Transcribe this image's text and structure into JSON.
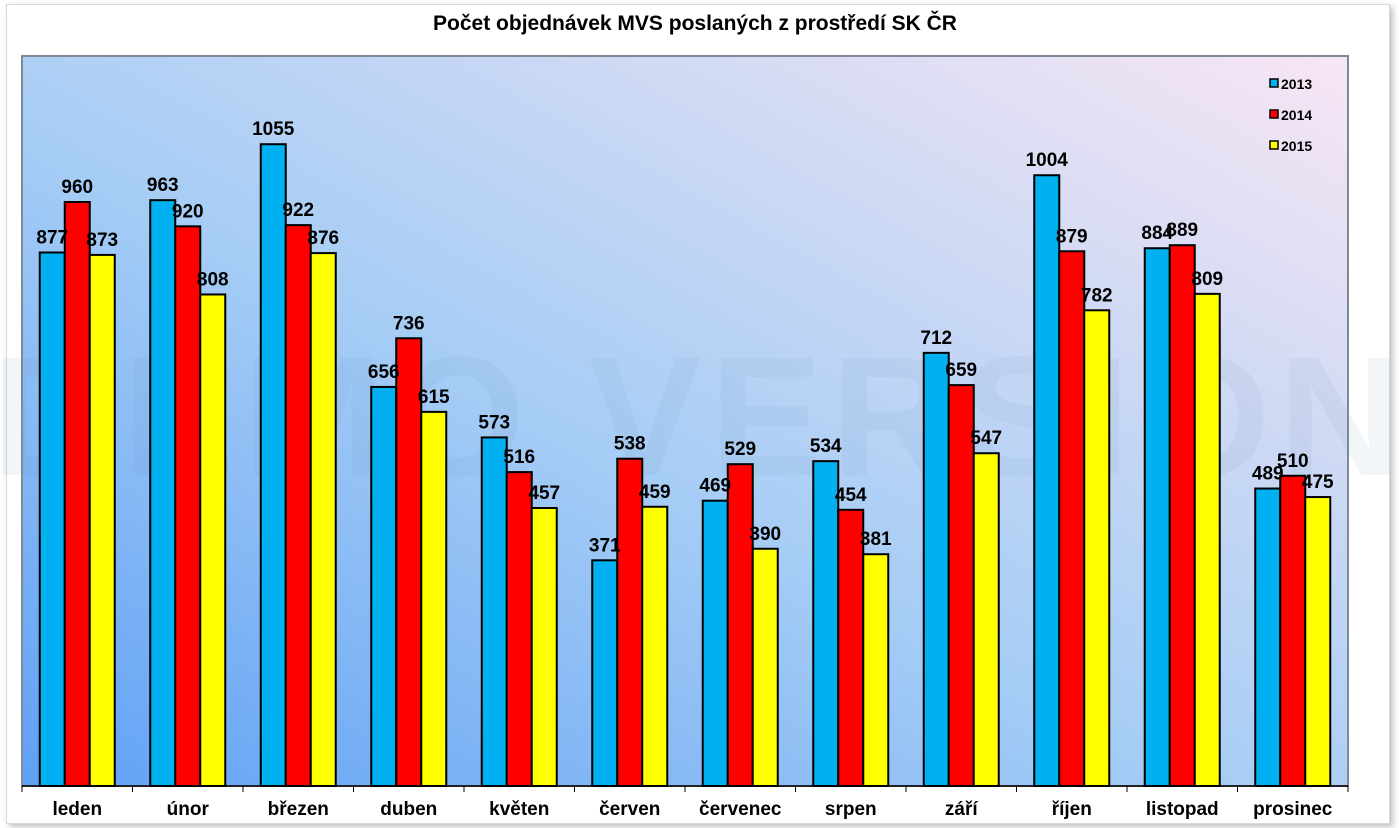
{
  "chart_data": {
    "type": "bar",
    "title": "Počet objednávek MVS poslaných z prostředí SK ČR",
    "xlabel": "",
    "ylabel": "",
    "ylim": [
      0,
      1200
    ],
    "grid": false,
    "legend_position": "top-right",
    "watermark": "DEMO VERSION",
    "categories": [
      "leden",
      "únor",
      "březen",
      "duben",
      "květen",
      "červen",
      "červenec",
      "srpen",
      "září",
      "říjen",
      "listopad",
      "prosinec"
    ],
    "series": [
      {
        "name": "2013",
        "color": "#00b0f0",
        "values": [
          877,
          963,
          1055,
          656,
          573,
          371,
          469,
          534,
          712,
          1004,
          884,
          489
        ]
      },
      {
        "name": "2014",
        "color": "#ff0000",
        "values": [
          960,
          920,
          922,
          736,
          516,
          538,
          529,
          454,
          659,
          879,
          889,
          510
        ]
      },
      {
        "name": "2015",
        "color": "#ffff00",
        "values": [
          873,
          808,
          876,
          615,
          457,
          459,
          390,
          381,
          547,
          782,
          809,
          475
        ]
      }
    ]
  }
}
